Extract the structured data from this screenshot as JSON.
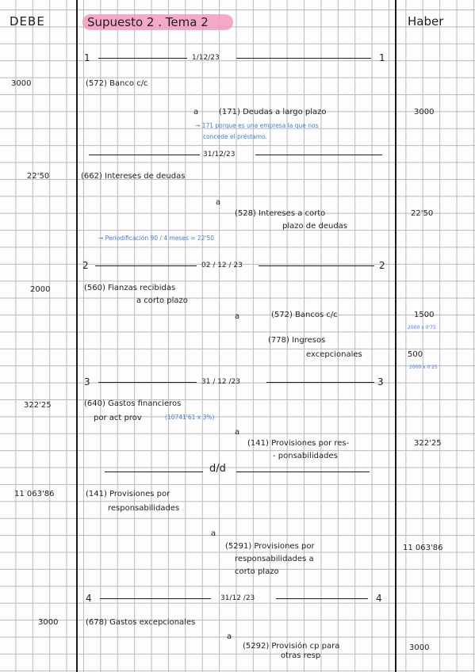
{
  "header": {
    "debe": "DEBE",
    "title": "Supuesto 2 . Tema 2",
    "haber": "Haber"
  },
  "entries": [
    {
      "sep_num": "1",
      "sep_date": "1/12/23",
      "debit_amount": "3000",
      "debit_account": "(572) Banco c/c",
      "credit_a": "a",
      "credit_account": "(171) Deudas a largo plazo",
      "credit_amount": "3000",
      "note_1": "→ 171 porque es una empresa la que nos",
      "note_2": "concede el préstamo."
    },
    {
      "sep_date": "31/12/23",
      "debit_amount": "22'50",
      "debit_account": "(662) Intereses de deudas",
      "credit_a": "a",
      "credit_account_1": "(528) Intereses a corto",
      "credit_account_2": "plazo de deudas",
      "credit_amount": "22'50",
      "note": "→ Periodificación    90 / 4 meses = 22'50"
    },
    {
      "sep_num": "2",
      "sep_date": "02 / 12 / 23",
      "debit_amount": "2000",
      "debit_account_1": "(560) Fianzas recibidas",
      "debit_account_2": "a corto plazo",
      "credit_a": "a",
      "credit_account": "(572) Bancos c/c",
      "credit_amount": "1500",
      "credit_note": "2000 x 0'75",
      "credit_account_b1": "(778) Ingresos",
      "credit_account_b2": "excepcionales",
      "credit_amount_b": "500",
      "credit_note_b": "2000 x 0'25"
    },
    {
      "sep_num": "3",
      "sep_date": "31 / 12 /23",
      "debit_amount": "322'25",
      "debit_account_1": "(640) Gastos financieros",
      "debit_account_2": "por act prov",
      "debit_note": "(10741'61 x 3%)",
      "credit_a": "a",
      "credit_account_1": "(141) Provisiones por res-",
      "credit_account_2": "- ponsabilidades",
      "credit_amount": "322'25"
    },
    {
      "sep_date": "d/d",
      "debit_amount": "11 063'86",
      "debit_account_1": "(141) Provisiones por",
      "debit_account_2": "responsabilidades",
      "credit_a": "a",
      "credit_account_1": "(5291) Provisiones por",
      "credit_account_2": "responsabilidades a",
      "credit_account_3": "corto plazo",
      "credit_amount": "11 063'86"
    },
    {
      "sep_num": "4",
      "sep_date": "31/12 /23",
      "debit_amount": "3000",
      "debit_account": "(678) Gastos excepcionales",
      "credit_a": "a",
      "credit_account_1": "(5292) Provisión cp para",
      "credit_account_2": "otras resp",
      "credit_amount": "3000"
    }
  ]
}
